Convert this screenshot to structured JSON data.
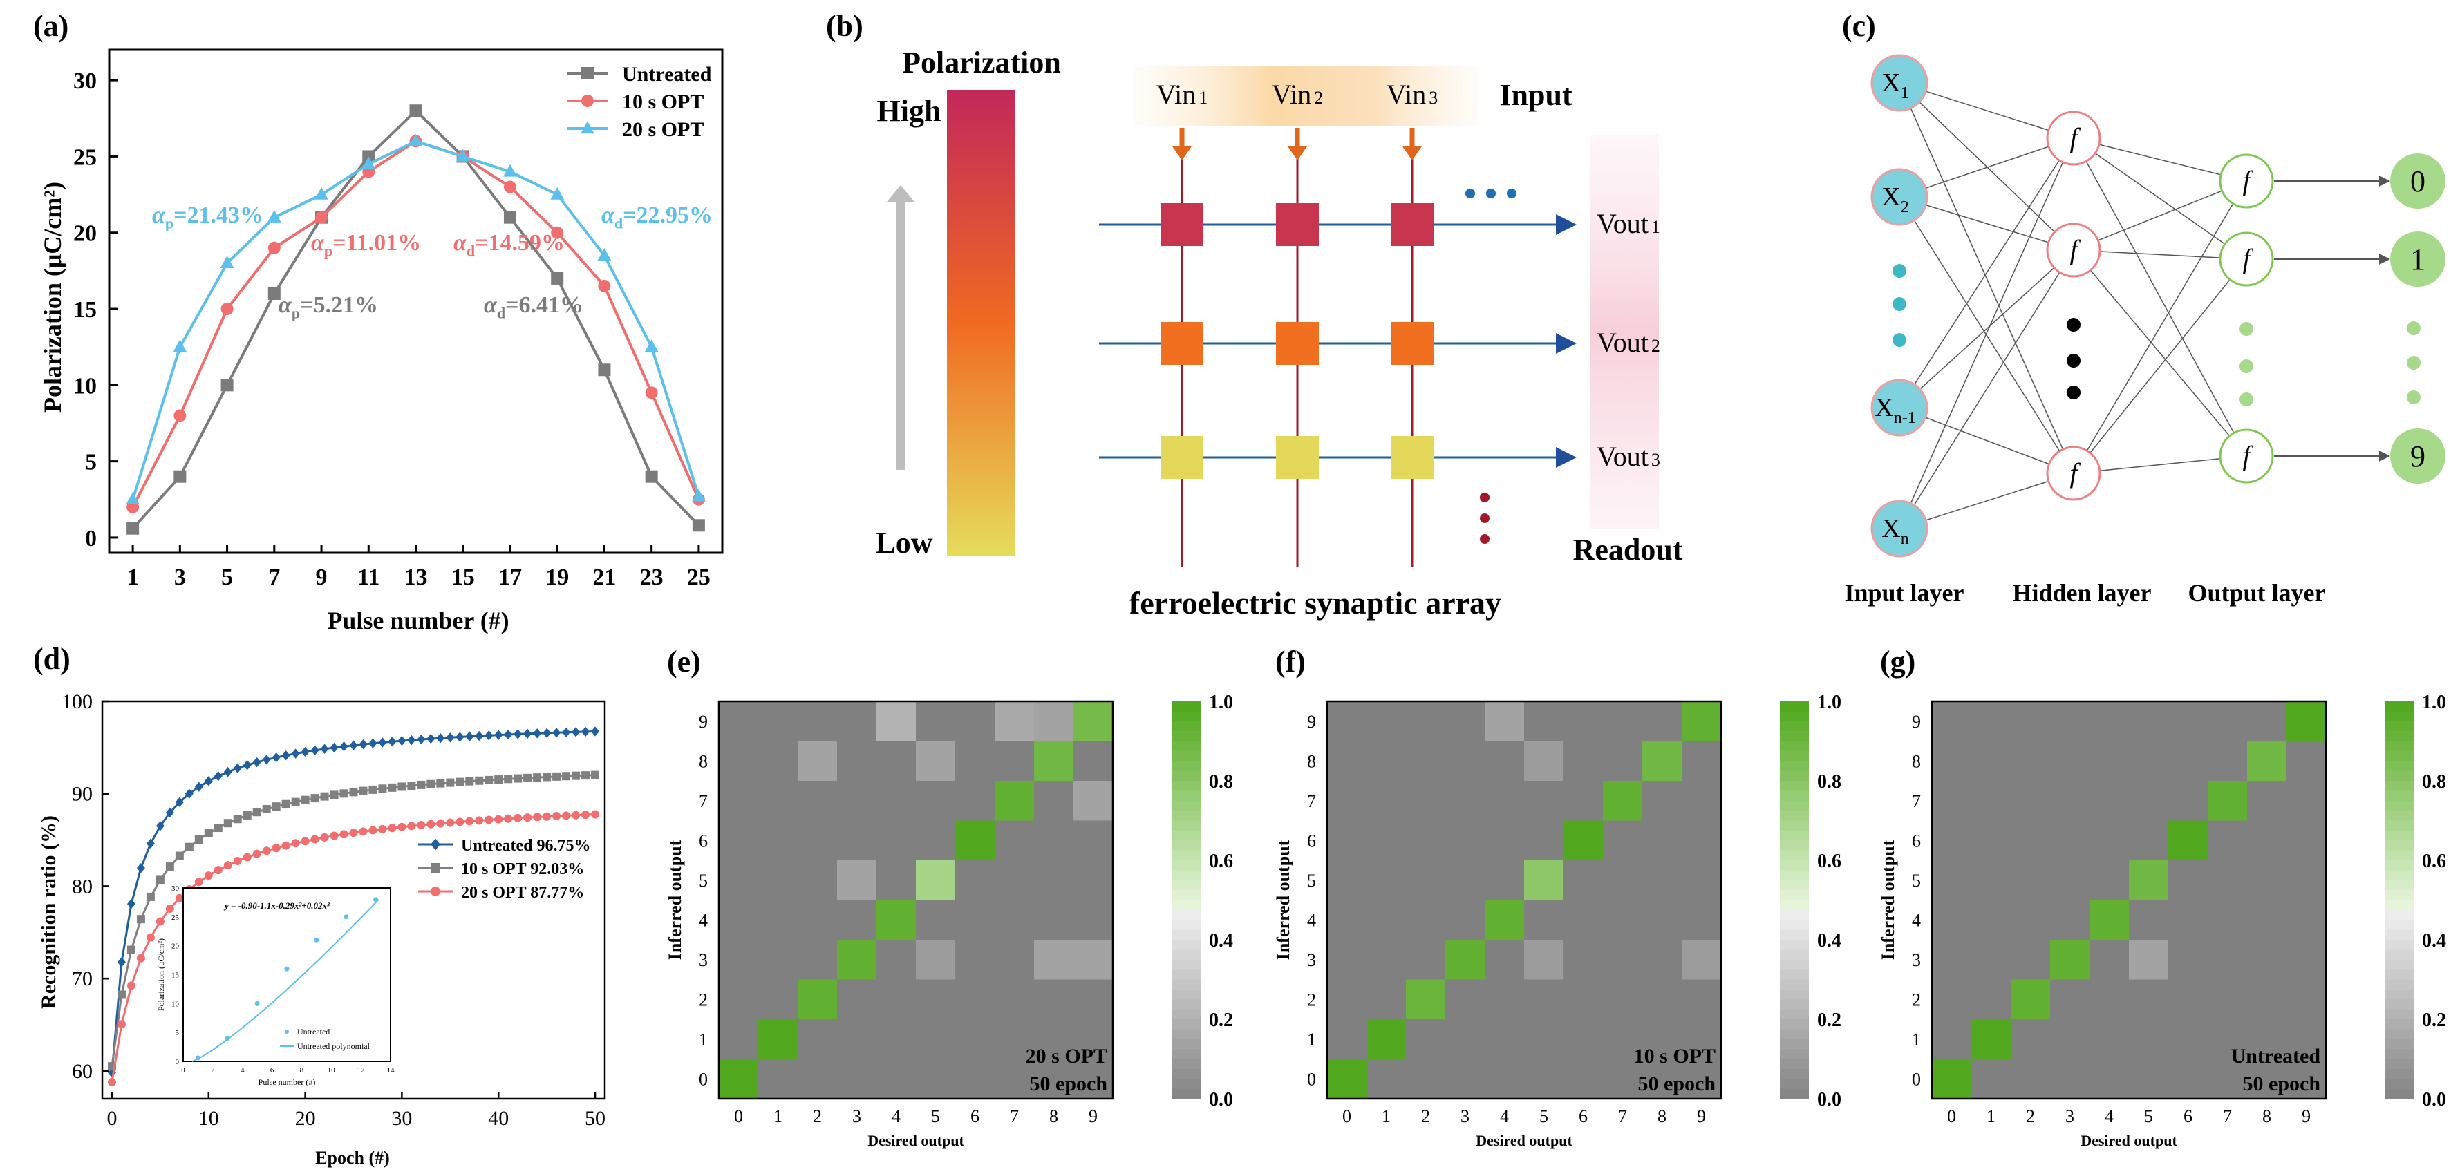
{
  "panels": {
    "a": {
      "label": "(a)",
      "chart_data": {
        "type": "line",
        "title": "",
        "xlabel": "Pulse number (#)",
        "ylabel": "Polarization (μC/cm²)",
        "x": [
          1,
          3,
          5,
          7,
          9,
          11,
          13,
          15,
          17,
          19,
          21,
          23,
          25
        ],
        "xlim": [
          0,
          26
        ],
        "ylim": [
          -1,
          32
        ],
        "xticks": [
          1,
          3,
          5,
          7,
          9,
          11,
          13,
          15,
          17,
          19,
          21,
          23,
          25
        ],
        "yticks": [
          0,
          5,
          10,
          15,
          20,
          25,
          30
        ],
        "series": [
          {
            "name": "Untreated",
            "color": "#7b7b7b",
            "marker": "square",
            "values": [
              0.6,
              4,
              10,
              16,
              21,
              25,
              28,
              25,
              21,
              17,
              11,
              4,
              0.8
            ]
          },
          {
            "name": "10 s OPT",
            "color": "#f26d6d",
            "marker": "circle",
            "values": [
              2,
              8,
              15,
              19,
              21,
              24,
              26,
              25,
              23,
              20,
              16.5,
              9.5,
              2.5
            ]
          },
          {
            "name": "20 s OPT",
            "color": "#5bc0eb",
            "marker": "triangle",
            "values": [
              2.5,
              12.5,
              18,
              21,
              22.5,
              24.5,
              26,
              25,
              24,
              22.5,
              18.5,
              12.5,
              2.7
            ]
          }
        ],
        "annotations": [
          {
            "text": "αp=21.43%",
            "color": "#5bc0eb"
          },
          {
            "text": "αp=11.01%",
            "color": "#f26d6d"
          },
          {
            "text": "αd=14.59%",
            "color": "#f26d6d"
          },
          {
            "text": "αd=22.95%",
            "color": "#5bc0eb"
          },
          {
            "text": "αp=5.21%",
            "color": "#7b7b7b"
          },
          {
            "text": "αd=6.41%",
            "color": "#7b7b7b"
          }
        ]
      }
    },
    "b": {
      "label": "(b)",
      "polarization_title": "Polarization",
      "high": "High",
      "low": "Low",
      "inputs": [
        "Vin 1",
        "Vin 2",
        "Vin 3"
      ],
      "input_label": "Input",
      "outputs": [
        "Vout 1",
        "Vout 2",
        "Vout 3"
      ],
      "readout_label": "Readout",
      "caption": "ferroelectric synaptic array",
      "row_colors": [
        "#c8354f",
        "#f07020",
        "#e3d85a"
      ]
    },
    "c": {
      "label": "(c)",
      "inputs": [
        "X1",
        "X2",
        "Xn-1",
        "Xn"
      ],
      "hidden_symbol": "f",
      "outputs": [
        "0",
        "1",
        "9"
      ],
      "layer_labels": [
        "Input layer",
        "Hidden layer",
        "Output layer"
      ]
    },
    "d": {
      "label": "(d)",
      "chart_data": {
        "type": "line",
        "xlabel": "Epoch (#)",
        "ylabel": "Recognition ratio (%)",
        "xlim": [
          -1,
          51
        ],
        "ylim": [
          57,
          100
        ],
        "xticks": [
          0,
          10,
          20,
          30,
          40,
          50
        ],
        "yticks": [
          60,
          70,
          80,
          90,
          100
        ],
        "series": [
          {
            "name": "Untreated 96.75%",
            "color": "#1f5f9f",
            "marker": "diamond",
            "final": 96.75,
            "start": 59.8,
            "k": 0.45
          },
          {
            "name": "10 s OPT 92.03%",
            "color": "#808080",
            "marker": "square",
            "final": 92.03,
            "start": 60.5,
            "k": 0.3
          },
          {
            "name": "20 s OPT 87.77%",
            "color": "#f26d6d",
            "marker": "circle",
            "final": 87.77,
            "start": 58.8,
            "k": 0.25
          }
        ],
        "inset": {
          "equation": "y = -0.90-1.1x-0.29x²+0.02x³",
          "xlabel": "Pulse number (#)",
          "ylabel": "Polarization (μC/cm²)",
          "xlim": [
            0,
            14
          ],
          "ylim": [
            0,
            30
          ],
          "xticks": [
            0,
            2,
            4,
            6,
            8,
            10,
            12,
            14
          ],
          "yticks": [
            0,
            5,
            10,
            15,
            20,
            25,
            30
          ],
          "points_x": [
            1,
            3,
            5,
            7,
            9,
            11,
            13
          ],
          "points_y": [
            0.6,
            4,
            10,
            16,
            21,
            25,
            28
          ],
          "legend": [
            "Untreated",
            "Untreated polynomial"
          ],
          "color": "#5bc0eb"
        }
      }
    },
    "cm": [
      {
        "label": "(e)",
        "note1": "20 s OPT",
        "note2": "50 epoch",
        "off": [
          [
            9,
            4,
            0.22
          ],
          [
            9,
            7,
            0.18
          ],
          [
            9,
            8,
            0.15
          ],
          [
            8,
            2,
            0.15
          ],
          [
            8,
            5,
            0.15
          ],
          [
            7,
            9,
            0.15
          ],
          [
            5,
            3,
            0.15
          ],
          [
            5,
            5,
            0.72
          ],
          [
            3,
            9,
            0.15
          ],
          [
            3,
            5,
            0.12
          ],
          [
            3,
            8,
            0.15
          ]
        ],
        "diag": [
          1,
          1,
          0.95,
          0.95,
          0.95,
          0.72,
          1,
          0.95,
          0.9,
          0.88
        ]
      },
      {
        "label": "(f)",
        "note1": "10 s OPT",
        "note2": "50 epoch",
        "off": [
          [
            9,
            4,
            0.15
          ],
          [
            8,
            5,
            0.12
          ],
          [
            5,
            5,
            0.8
          ],
          [
            3,
            5,
            0.12
          ],
          [
            3,
            9,
            0.12
          ]
        ],
        "diag": [
          1,
          1,
          0.92,
          0.95,
          0.95,
          0.8,
          1,
          0.95,
          0.9,
          0.95
        ]
      },
      {
        "label": "(g)",
        "note1": "Untreated",
        "note2": "50 epoch",
        "off": [
          [
            3,
            5,
            0.15
          ]
        ],
        "diag": [
          1,
          1,
          0.95,
          0.95,
          0.95,
          0.9,
          1,
          0.95,
          0.9,
          1
        ]
      }
    ],
    "cm_axes": {
      "xlabel": "Desired output",
      "ylabel": "Inferred output",
      "ticks": [
        "0",
        "1",
        "2",
        "3",
        "4",
        "5",
        "6",
        "7",
        "8",
        "9"
      ],
      "cbar_ticks": [
        "0.0",
        "0.2",
        "0.4",
        "0.6",
        "0.8",
        "1.0"
      ]
    }
  }
}
